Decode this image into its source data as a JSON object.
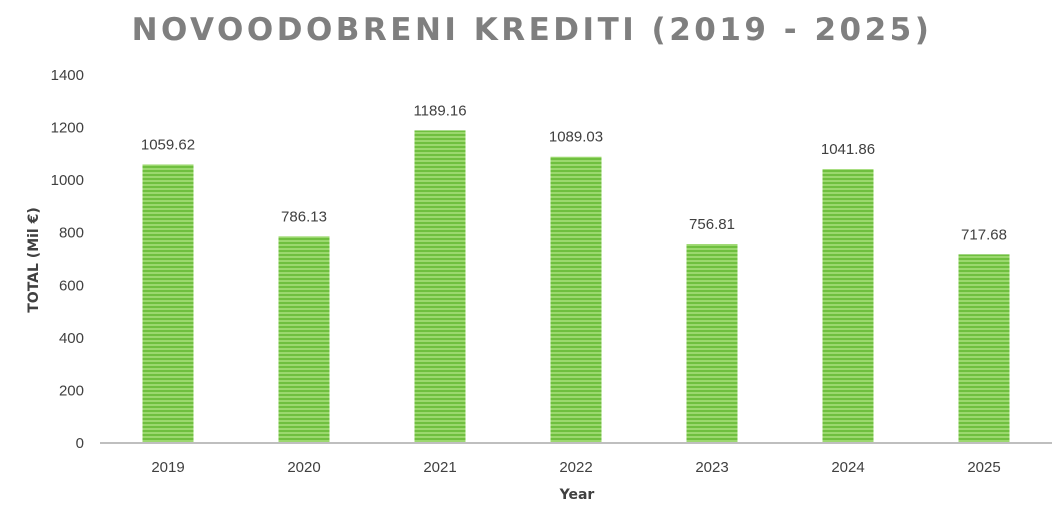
{
  "chart_data": {
    "type": "bar",
    "title": "NOVOODOBRENI KREDITI (2019 - 2025)",
    "xlabel": "Year",
    "ylabel": "TOTAL (Mil €)",
    "categories": [
      "2019",
      "2020",
      "2021",
      "2022",
      "2023",
      "2024",
      "2025"
    ],
    "values": [
      1059.62,
      786.13,
      1189.16,
      1089.03,
      756.81,
      1041.86,
      717.68
    ],
    "data_labels": [
      "1059.62",
      "786.13",
      "1189.16",
      "1089.03",
      "756.81",
      "1041.86",
      "717.68"
    ],
    "ylim": [
      0,
      1400
    ],
    "yticks": [
      "0",
      "200",
      "400",
      "600",
      "800",
      "1000",
      "1200",
      "1400"
    ],
    "grid": false,
    "legend": "none",
    "bar_color": "#6fbf3f",
    "bar_stripe_color": "#9bd86e"
  }
}
